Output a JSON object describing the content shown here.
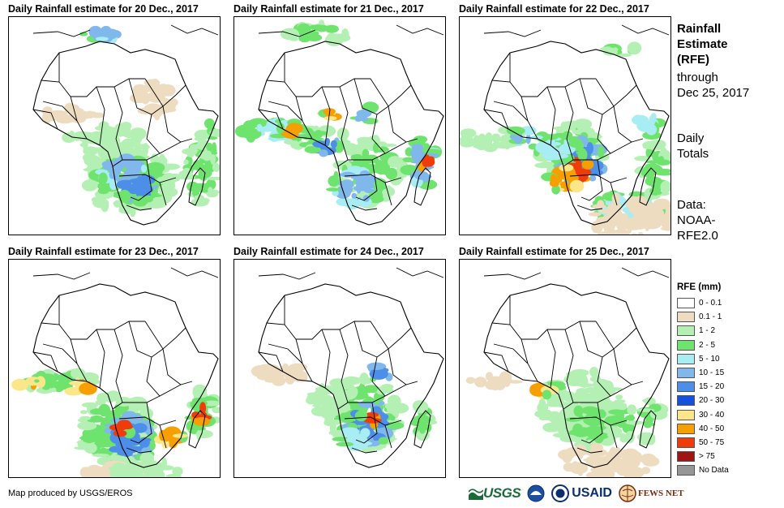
{
  "panels": [
    {
      "title": "Daily Rainfall estimate for 20 Dec., 2017"
    },
    {
      "title": "Daily Rainfall estimate for 21 Dec., 2017"
    },
    {
      "title": "Daily Rainfall estimate for 22 Dec., 2017"
    },
    {
      "title": "Daily Rainfall estimate for 23 Dec., 2017"
    },
    {
      "title": "Daily Rainfall estimate for 24 Dec., 2017"
    },
    {
      "title": "Daily Rainfall estimate for 25 Dec., 2017"
    }
  ],
  "side": {
    "title_line1": "Rainfall",
    "title_line2": "Estimate",
    "title_line3": "(RFE)",
    "through_line1": "through",
    "through_line2": "Dec 25, 2017",
    "daily_line1": "Daily",
    "daily_line2": "Totals",
    "data_line1": "Data:",
    "data_line2": "NOAA-",
    "data_line3": "RFE2.0"
  },
  "legend": {
    "title": "RFE (mm)",
    "items": [
      {
        "label": "0 - 0.1",
        "color": "#ffffff"
      },
      {
        "label": "0.1 - 1",
        "color": "#eedcc0"
      },
      {
        "label": "1 - 2",
        "color": "#b4f0b4"
      },
      {
        "label": "2 - 5",
        "color": "#6ee46e"
      },
      {
        "label": "5 - 10",
        "color": "#a8ecf4"
      },
      {
        "label": "10 - 15",
        "color": "#80b8ec"
      },
      {
        "label": "15 - 20",
        "color": "#4c8ee8"
      },
      {
        "label": "20 - 30",
        "color": "#1450dc"
      },
      {
        "label": "30 - 40",
        "color": "#fce68a"
      },
      {
        "label": "40 - 50",
        "color": "#f5a000"
      },
      {
        "label": "50 - 75",
        "color": "#f03c0a"
      },
      {
        "label": "> 75",
        "color": "#a01414"
      },
      {
        "label": "No Data",
        "color": "#969696"
      }
    ]
  },
  "credit": "Map produced by USGS/EROS",
  "logos": {
    "usgs": "USGS",
    "usaid": "USAID",
    "fews": "FEWS NET"
  }
}
